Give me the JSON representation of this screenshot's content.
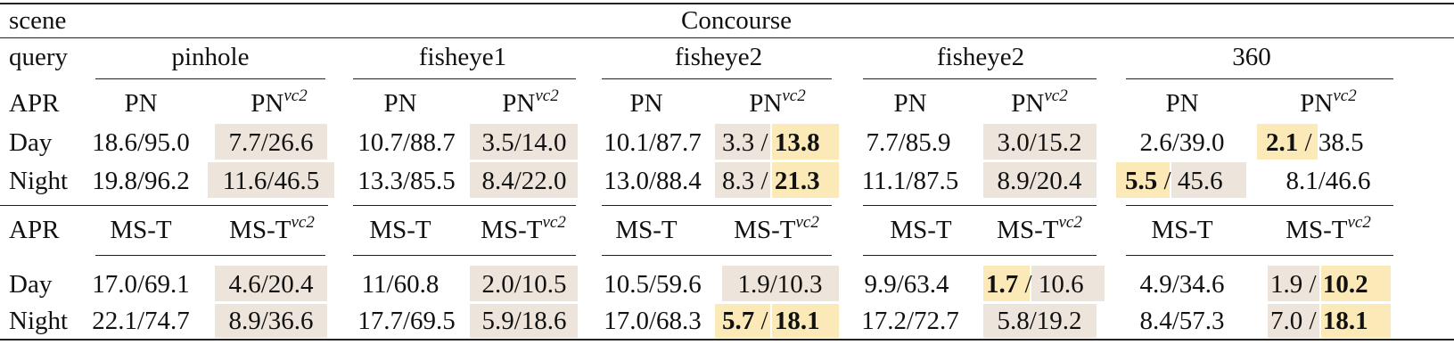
{
  "header": {
    "scene_label": "scene",
    "scene_value": "Concourse",
    "query_label": "query",
    "queries": [
      "pinhole",
      "fisheye1",
      "fisheye2",
      "fisheye2",
      "360"
    ],
    "apr_label": "APR",
    "methods_pn": {
      "base": "PN",
      "vc": "PN",
      "sup": "vc2"
    },
    "methods_mst": {
      "base": "MS-T",
      "vc": "MS-T",
      "sup": "vc2"
    }
  },
  "rows": {
    "day_label": "Day",
    "night_label": "Night",
    "pn_day": [
      "18.6/95.0",
      "7.7/26.6",
      "10.7/88.7",
      "3.5/14.0",
      "10.1/87.7",
      "3.3",
      "13.8",
      "7.7/85.9",
      "3.0/15.2",
      "2.6/39.0",
      "2.1",
      "38.5"
    ],
    "pn_night": [
      "19.8/96.2",
      "11.6/46.5",
      "13.3/85.5",
      "8.4/22.0",
      "13.0/88.4",
      "8.3",
      "21.3",
      "11.1/87.5",
      "8.9/20.4",
      "5.5",
      "45.6",
      "8.1/46.6"
    ],
    "mst_day": [
      "17.0/69.1",
      "4.6/20.4",
      "11/60.8",
      "2.0/10.5",
      "10.5/59.6",
      "1.9/10.3",
      "9.9/63.4",
      "1.7",
      "10.6",
      "4.9/34.6",
      "1.9",
      "10.2"
    ],
    "mst_night": [
      "22.1/74.7",
      "8.9/36.6",
      "17.7/69.5",
      "5.9/18.6",
      "17.0/68.3",
      "5.7",
      "18.1",
      "17.2/72.7",
      "5.8/19.2",
      "8.4/57.3",
      "7.0",
      "18.1"
    ]
  },
  "separator": "/",
  "colors": {
    "shade": "#ede4db",
    "best": "#fbe9b8"
  }
}
